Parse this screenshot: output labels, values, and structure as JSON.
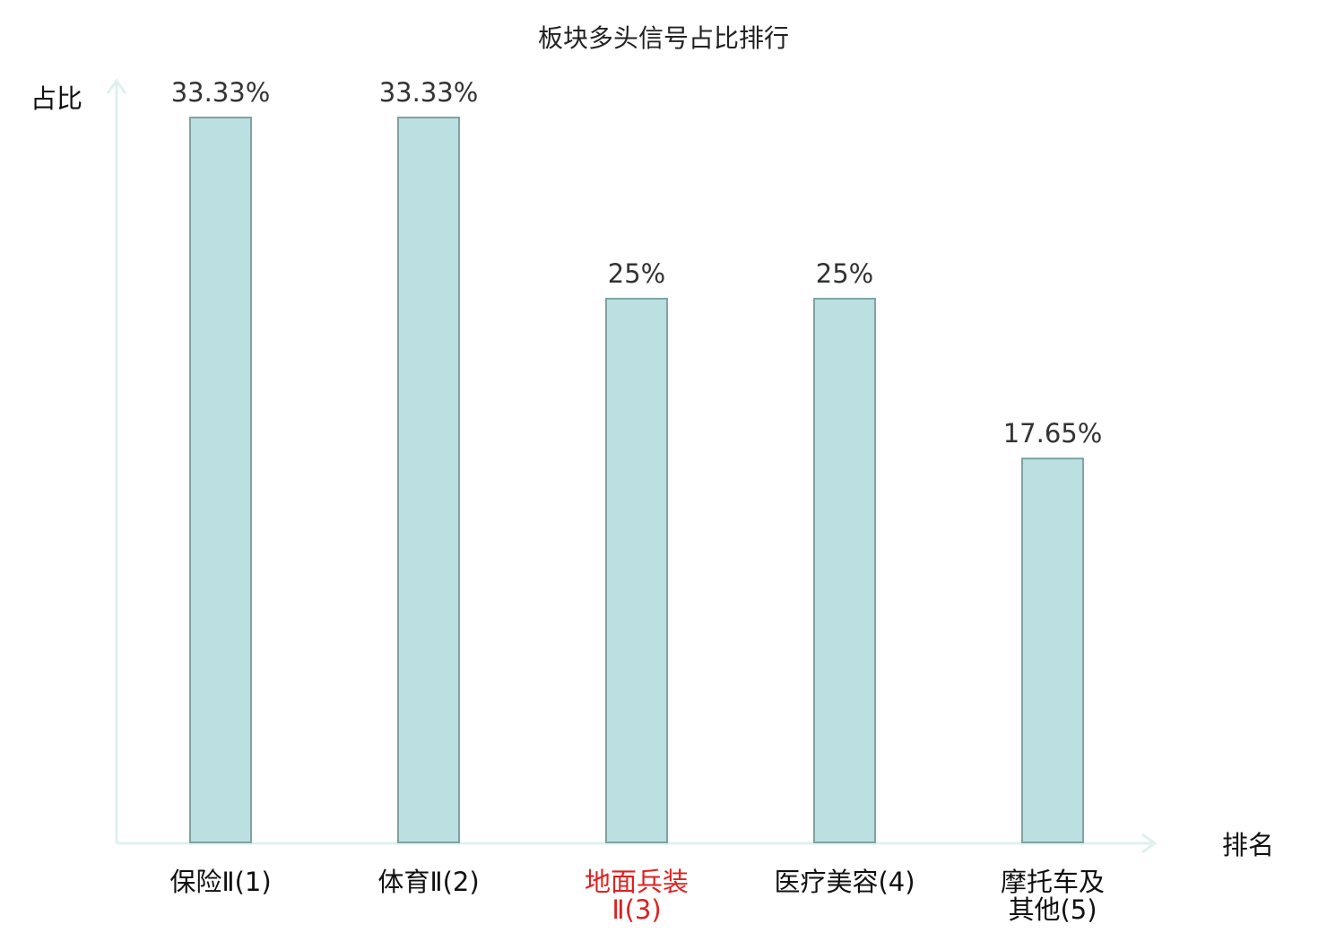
{
  "chart_data": {
    "type": "bar",
    "title": "板块多头信号占比排行",
    "xlabel": "排名",
    "ylabel": "占比",
    "categories": [
      {
        "lines": [
          "保险Ⅱ(1)"
        ],
        "color": "#111111"
      },
      {
        "lines": [
          "体育Ⅱ(2)"
        ],
        "color": "#111111"
      },
      {
        "lines": [
          "地面兵装",
          "Ⅱ(3)"
        ],
        "color": "#e02020"
      },
      {
        "lines": [
          "医疗美容(4)"
        ],
        "color": "#111111"
      },
      {
        "lines": [
          "摩托车及",
          "其他(5)"
        ],
        "color": "#111111"
      }
    ],
    "values": [
      33.33,
      33.33,
      25,
      25,
      17.65
    ],
    "value_labels": [
      "33.33%",
      "33.33%",
      "25%",
      "25%",
      "17.65%"
    ],
    "ylim": [
      0,
      33.33
    ],
    "grid": false,
    "colors": {
      "bar_fill": "#bce0e1",
      "bar_stroke": "#7fa3a5",
      "axis": "#dff0ef",
      "highlight": "#e02020"
    }
  }
}
